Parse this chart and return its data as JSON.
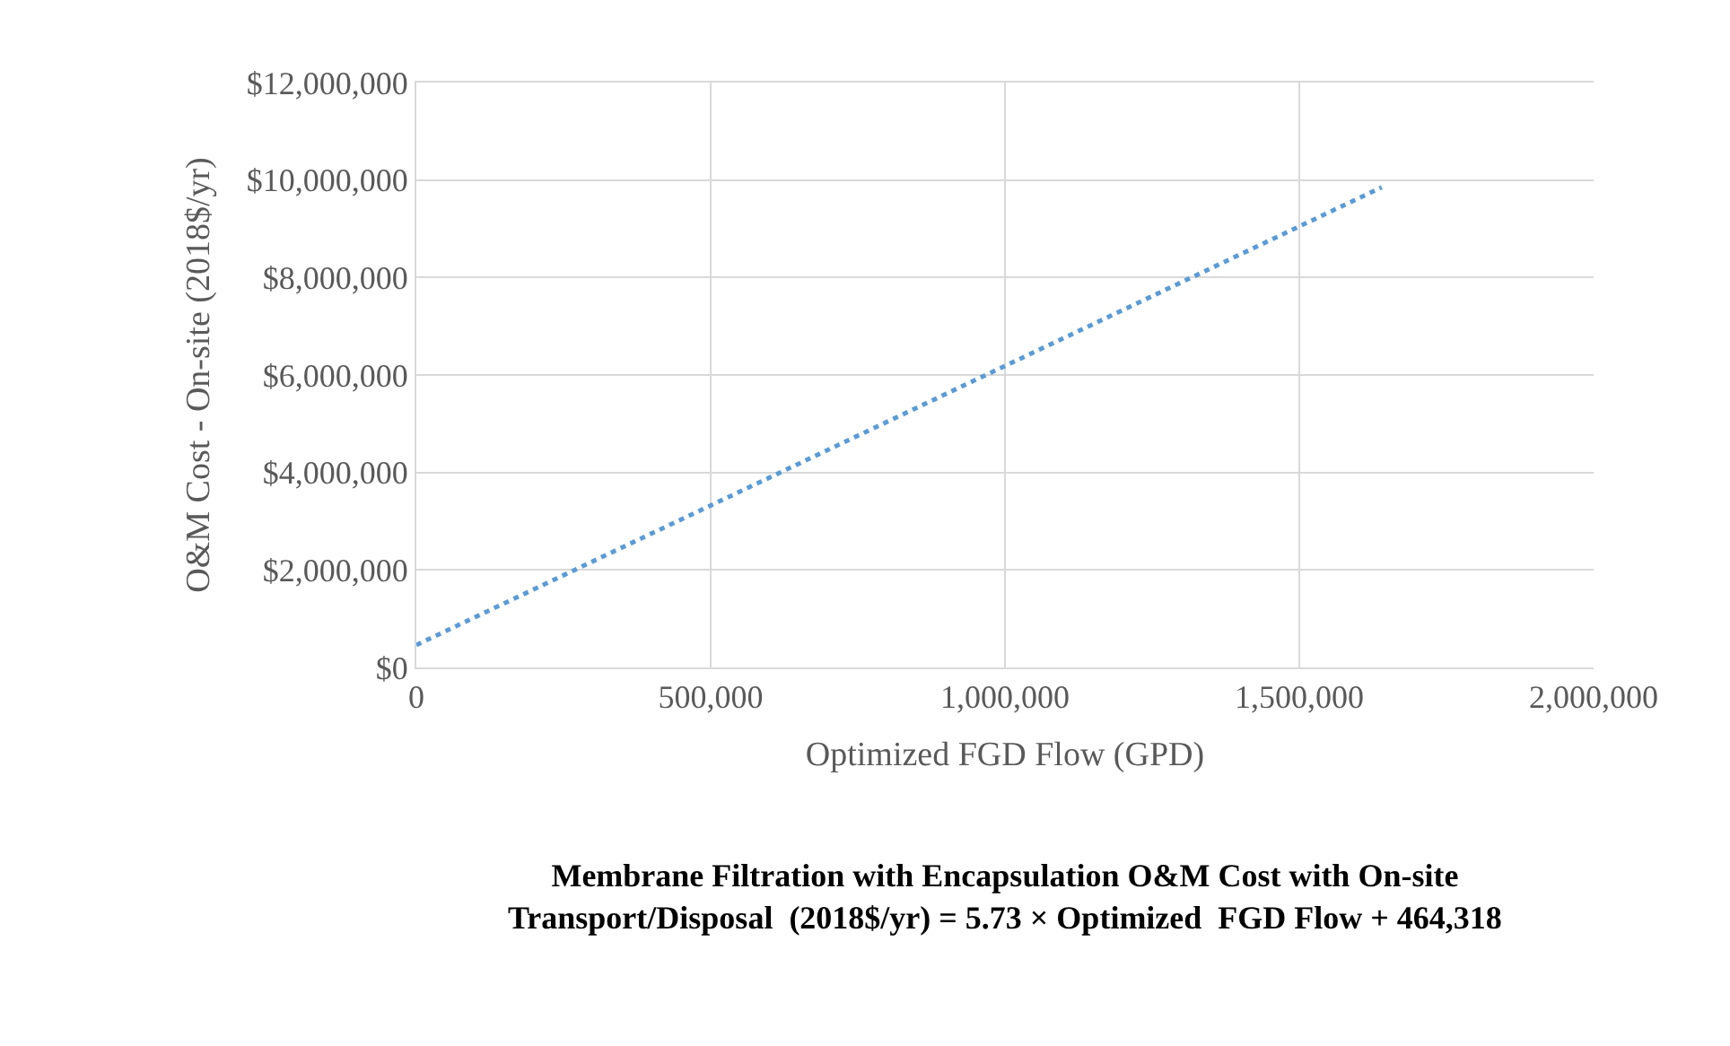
{
  "chart_data": {
    "type": "line",
    "title": "Membrane Filtration with Encapsulation O&M Cost with On-site\nTransport/Disposal  (2018$/yr) = 5.73 × Optimized  FGD Flow + 464,318",
    "xlabel": "Optimized FGD Flow (GPD)",
    "ylabel": "O&M Cost - On-site (2018$/yr)",
    "x": [
      0,
      1640000
    ],
    "series": [
      {
        "color": "#5b9bd5",
        "values": [
          460000,
          9850000
        ]
      }
    ],
    "xlim": [
      0,
      2000000
    ],
    "xticks": [
      0,
      {
        "value": 500000,
        "label": "500,000"
      },
      {
        "value": 1000000,
        "label": "1,000,000"
      },
      {
        "value": 1500000,
        "label": "1,500,000"
      },
      {
        "value": 2000000,
        "label": "2,000,000"
      }
    ],
    "ylim": [
      0,
      12000000
    ],
    "yticks": [
      {
        "value": 0,
        "label": "$0"
      },
      {
        "value": 2000000,
        "label": "$2,000,000"
      },
      {
        "value": 4000000,
        "label": "$4,000,000"
      },
      {
        "value": 6000000,
        "label": "$6,000,000"
      },
      {
        "value": 8000000,
        "label": "$8,000,000"
      },
      {
        "value": 10000000,
        "label": "$10,000,000"
      },
      {
        "value": 12000000,
        "label": "$12,000,000"
      }
    ],
    "grid": true,
    "marker": "none",
    "line_style": "dotted"
  }
}
